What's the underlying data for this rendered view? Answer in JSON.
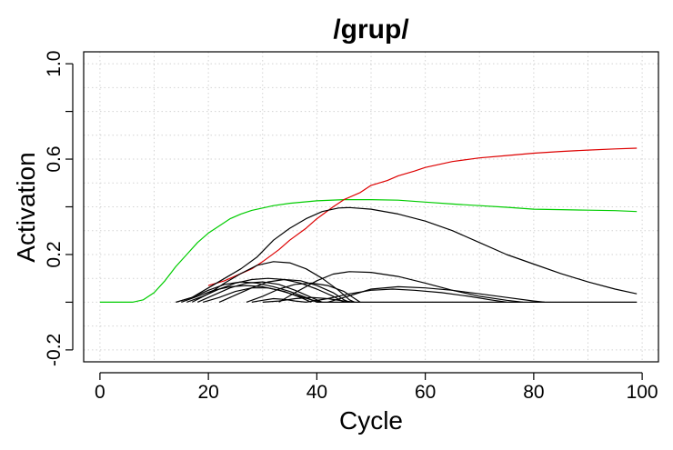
{
  "chart_data": {
    "type": "line",
    "title": "/grup/",
    "xlabel": "Cycle",
    "ylabel": "Activation",
    "xlim": [
      -3,
      103
    ],
    "ylim": [
      -0.25,
      1.05
    ],
    "xticks": [
      0,
      20,
      40,
      60,
      80,
      100
    ],
    "yticks": [
      -0.2,
      0.2,
      0.6,
      1.0
    ],
    "xtick_labels": [
      "0",
      "20",
      "40",
      "60",
      "80",
      "100"
    ],
    "ytick_labels": [
      "-0.2",
      "0.2",
      "0.6",
      "1.0"
    ],
    "grid": true,
    "series": [
      {
        "color": "#00cc00",
        "points": [
          [
            0,
            0
          ],
          [
            6,
            0
          ],
          [
            8,
            0.01
          ],
          [
            10,
            0.04
          ],
          [
            12,
            0.09
          ],
          [
            14,
            0.15
          ],
          [
            16,
            0.2
          ],
          [
            18,
            0.25
          ],
          [
            20,
            0.29
          ],
          [
            22,
            0.32
          ],
          [
            24,
            0.35
          ],
          [
            26,
            0.37
          ],
          [
            28,
            0.385
          ],
          [
            30,
            0.395
          ],
          [
            32,
            0.405
          ],
          [
            35,
            0.415
          ],
          [
            40,
            0.425
          ],
          [
            45,
            0.43
          ],
          [
            50,
            0.43
          ],
          [
            55,
            0.428
          ],
          [
            60,
            0.42
          ],
          [
            65,
            0.412
          ],
          [
            70,
            0.405
          ],
          [
            75,
            0.398
          ],
          [
            80,
            0.39
          ],
          [
            85,
            0.388
          ],
          [
            90,
            0.386
          ],
          [
            95,
            0.384
          ],
          [
            99,
            0.38
          ]
        ]
      },
      {
        "color": "#dd0000",
        "points": [
          [
            20,
            0.07
          ],
          [
            23,
            0.09
          ],
          [
            25,
            0.11
          ],
          [
            28,
            0.14
          ],
          [
            30,
            0.17
          ],
          [
            33,
            0.22
          ],
          [
            35,
            0.26
          ],
          [
            38,
            0.31
          ],
          [
            40,
            0.35
          ],
          [
            43,
            0.4
          ],
          [
            45,
            0.43
          ],
          [
            48,
            0.46
          ],
          [
            50,
            0.49
          ],
          [
            53,
            0.51
          ],
          [
            55,
            0.53
          ],
          [
            58,
            0.55
          ],
          [
            60,
            0.565
          ],
          [
            65,
            0.59
          ],
          [
            70,
            0.605
          ],
          [
            75,
            0.615
          ],
          [
            80,
            0.625
          ],
          [
            85,
            0.632
          ],
          [
            90,
            0.638
          ],
          [
            95,
            0.643
          ],
          [
            99,
            0.646
          ]
        ]
      },
      {
        "color": "#000000",
        "points": [
          [
            14,
            0
          ],
          [
            17,
            0.02
          ],
          [
            20,
            0.06
          ],
          [
            23,
            0.1
          ],
          [
            26,
            0.14
          ],
          [
            29,
            0.19
          ],
          [
            32,
            0.26
          ],
          [
            35,
            0.31
          ],
          [
            38,
            0.35
          ],
          [
            41,
            0.38
          ],
          [
            44,
            0.395
          ],
          [
            46,
            0.397
          ],
          [
            50,
            0.39
          ],
          [
            55,
            0.37
          ],
          [
            60,
            0.34
          ],
          [
            65,
            0.3
          ],
          [
            70,
            0.25
          ],
          [
            75,
            0.2
          ],
          [
            80,
            0.16
          ],
          [
            85,
            0.12
          ],
          [
            90,
            0.085
          ],
          [
            95,
            0.055
          ],
          [
            99,
            0.035
          ]
        ]
      },
      {
        "color": "#000000",
        "points": [
          [
            14,
            0
          ],
          [
            17,
            0.02
          ],
          [
            20,
            0.05
          ],
          [
            23,
            0.075
          ],
          [
            26,
            0.085
          ],
          [
            29,
            0.08
          ],
          [
            32,
            0.065
          ],
          [
            35,
            0.045
          ],
          [
            38,
            0.02
          ],
          [
            40,
            0
          ],
          [
            99,
            0
          ]
        ]
      },
      {
        "color": "#000000",
        "points": [
          [
            15,
            0
          ],
          [
            18,
            0.025
          ],
          [
            21,
            0.05
          ],
          [
            24,
            0.065
          ],
          [
            27,
            0.07
          ],
          [
            30,
            0.065
          ],
          [
            33,
            0.05
          ],
          [
            36,
            0.03
          ],
          [
            39,
            0.01
          ],
          [
            41,
            0
          ]
        ]
      },
      {
        "color": "#000000",
        "points": [
          [
            16,
            0
          ],
          [
            19,
            0.025
          ],
          [
            22,
            0.055
          ],
          [
            25,
            0.08
          ],
          [
            28,
            0.095
          ],
          [
            31,
            0.1
          ],
          [
            34,
            0.095
          ],
          [
            37,
            0.08
          ],
          [
            40,
            0.055
          ],
          [
            43,
            0.025
          ],
          [
            45,
            0
          ]
        ]
      },
      {
        "color": "#000000",
        "points": [
          [
            17,
            0
          ],
          [
            20,
            0.035
          ],
          [
            23,
            0.08
          ],
          [
            26,
            0.12
          ],
          [
            29,
            0.155
          ],
          [
            32,
            0.17
          ],
          [
            35,
            0.165
          ],
          [
            38,
            0.14
          ],
          [
            41,
            0.1
          ],
          [
            44,
            0.05
          ],
          [
            46,
            0.01
          ],
          [
            47,
            0
          ]
        ]
      },
      {
        "color": "#000000",
        "points": [
          [
            18,
            0
          ],
          [
            21,
            0.03
          ],
          [
            24,
            0.06
          ],
          [
            27,
            0.08
          ],
          [
            30,
            0.085
          ],
          [
            33,
            0.075
          ],
          [
            36,
            0.05
          ],
          [
            39,
            0.02
          ],
          [
            41,
            0
          ]
        ]
      },
      {
        "color": "#000000",
        "points": [
          [
            19,
            0
          ],
          [
            22,
            0.02
          ],
          [
            25,
            0.045
          ],
          [
            28,
            0.06
          ],
          [
            31,
            0.06
          ],
          [
            34,
            0.045
          ],
          [
            37,
            0.02
          ],
          [
            39,
            0
          ]
        ]
      },
      {
        "color": "#000000",
        "points": [
          [
            22,
            0
          ],
          [
            25,
            0.03
          ],
          [
            28,
            0.06
          ],
          [
            31,
            0.085
          ],
          [
            34,
            0.095
          ],
          [
            37,
            0.09
          ],
          [
            40,
            0.07
          ],
          [
            43,
            0.04
          ],
          [
            45,
            0.01
          ],
          [
            46,
            0
          ]
        ]
      },
      {
        "color": "#000000",
        "points": [
          [
            27,
            0
          ],
          [
            30,
            0.025
          ],
          [
            33,
            0.055
          ],
          [
            36,
            0.075
          ],
          [
            39,
            0.08
          ],
          [
            42,
            0.07
          ],
          [
            45,
            0.045
          ],
          [
            47,
            0.015
          ],
          [
            48,
            0
          ]
        ]
      },
      {
        "color": "#000000",
        "points": [
          [
            33,
            0
          ],
          [
            36,
            0.04
          ],
          [
            40,
            0.09
          ],
          [
            43,
            0.118
          ],
          [
            46,
            0.128
          ],
          [
            50,
            0.125
          ],
          [
            55,
            0.108
          ],
          [
            60,
            0.08
          ],
          [
            65,
            0.05
          ],
          [
            70,
            0.025
          ],
          [
            75,
            0.008
          ],
          [
            78,
            0
          ]
        ]
      },
      {
        "color": "#000000",
        "points": [
          [
            30,
            0
          ],
          [
            33,
            0.005
          ],
          [
            36,
            0.015
          ],
          [
            39,
            0.02
          ],
          [
            42,
            0.015
          ],
          [
            45,
            0.005
          ],
          [
            47,
            0
          ]
        ]
      },
      {
        "color": "#000000",
        "points": [
          [
            42,
            0
          ],
          [
            45,
            0.02
          ],
          [
            50,
            0.055
          ],
          [
            55,
            0.065
          ],
          [
            60,
            0.06
          ],
          [
            65,
            0.05
          ],
          [
            70,
            0.035
          ],
          [
            75,
            0.02
          ],
          [
            80,
            0.005
          ],
          [
            82,
            0
          ]
        ]
      },
      {
        "color": "#000000",
        "points": [
          [
            38,
            0
          ],
          [
            42,
            0.015
          ],
          [
            46,
            0.035
          ],
          [
            50,
            0.05
          ],
          [
            54,
            0.055
          ],
          [
            58,
            0.05
          ],
          [
            63,
            0.04
          ],
          [
            68,
            0.025
          ],
          [
            72,
            0.01
          ],
          [
            75,
            0
          ]
        ]
      },
      {
        "color": "#000000",
        "points": [
          [
            28,
            0
          ],
          [
            30,
            0.008
          ],
          [
            32,
            0.015
          ],
          [
            34,
            0.012
          ],
          [
            36,
            0.005
          ],
          [
            38,
            0
          ]
        ]
      }
    ]
  }
}
